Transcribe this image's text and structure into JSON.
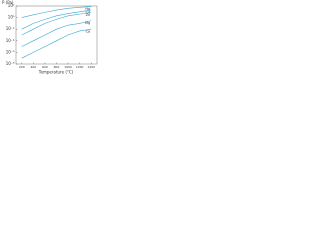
{
  "chart_data": {
    "type": "line",
    "y_label": "P (Pa)",
    "x_label": "Temperature (°C)",
    "x": [
      200,
      400,
      600,
      800,
      1000,
      1200,
      1400
    ],
    "xlim": [
      100,
      1500
    ],
    "xticks": [
      200,
      400,
      600,
      800,
      1000,
      1200,
      1400
    ],
    "ylim": [
      1e-08,
      100
    ],
    "yticks": [
      {
        "value": 100,
        "label": "10²"
      },
      {
        "value": 1,
        "label": "10⁰"
      },
      {
        "value": 0.01,
        "label": "10⁻²"
      },
      {
        "value": 0.0001,
        "label": "10⁻⁴"
      },
      {
        "value": 1e-06,
        "label": "10⁻⁶"
      },
      {
        "value": 1e-08,
        "label": "10⁻⁸"
      }
    ],
    "log_y": true,
    "grid": false,
    "series": [
      {
        "name": "Hg",
        "color": "#3aa6d6",
        "values": [
          1,
          3,
          8,
          20,
          40,
          60,
          80
        ]
      },
      {
        "name": "Cd",
        "color": "#3aa6d6",
        "values": [
          0.01,
          0.1,
          0.5,
          2,
          5,
          10,
          20
        ]
      },
      {
        "name": "Zn",
        "color": "#3aa6d6",
        "values": [
          0.001,
          0.01,
          0.1,
          0.5,
          2,
          4,
          8
        ]
      },
      {
        "name": "Mg",
        "color": "#3aa6d6",
        "values": [
          1e-05,
          0.0001,
          0.001,
          0.01,
          0.05,
          0.1,
          0.3
        ]
      },
      {
        "name": "Ca",
        "color": "#3aa6d6",
        "values": [
          1e-07,
          1e-06,
          1e-05,
          0.0001,
          0.001,
          0.005,
          0.01
        ]
      }
    ]
  }
}
